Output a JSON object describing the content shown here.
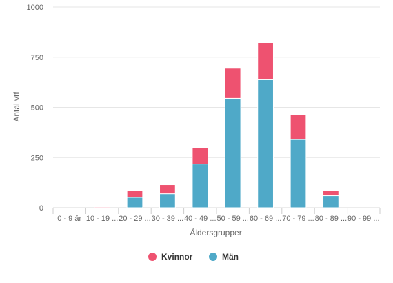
{
  "chart_data": {
    "type": "bar",
    "stacked": true,
    "categories": [
      "0 - 9 år",
      "10 - 19 ...",
      "20 - 29 ...",
      "30 - 39 ...",
      "40 - 49 ...",
      "50 - 59 ...",
      "60 - 69 ...",
      "70 - 79 ...",
      "80 - 89 ...",
      "90 - 99 ..."
    ],
    "series": [
      {
        "name": "Kvinnor",
        "color": "#ee5270",
        "values": [
          0,
          4,
          35,
          45,
          80,
          150,
          185,
          125,
          25,
          0
        ]
      },
      {
        "name": "Män",
        "color": "#4fa9c8",
        "values": [
          0,
          1,
          52,
          70,
          218,
          545,
          638,
          340,
          60,
          0
        ]
      }
    ],
    "xlabel": "Åldersgrupper",
    "ylabel": "Antal vtf",
    "ylim": [
      0,
      1000
    ],
    "yticks": [
      "0",
      "250",
      "500",
      "750",
      "1000"
    ],
    "grid": true,
    "legend_position": "bottom-center"
  }
}
